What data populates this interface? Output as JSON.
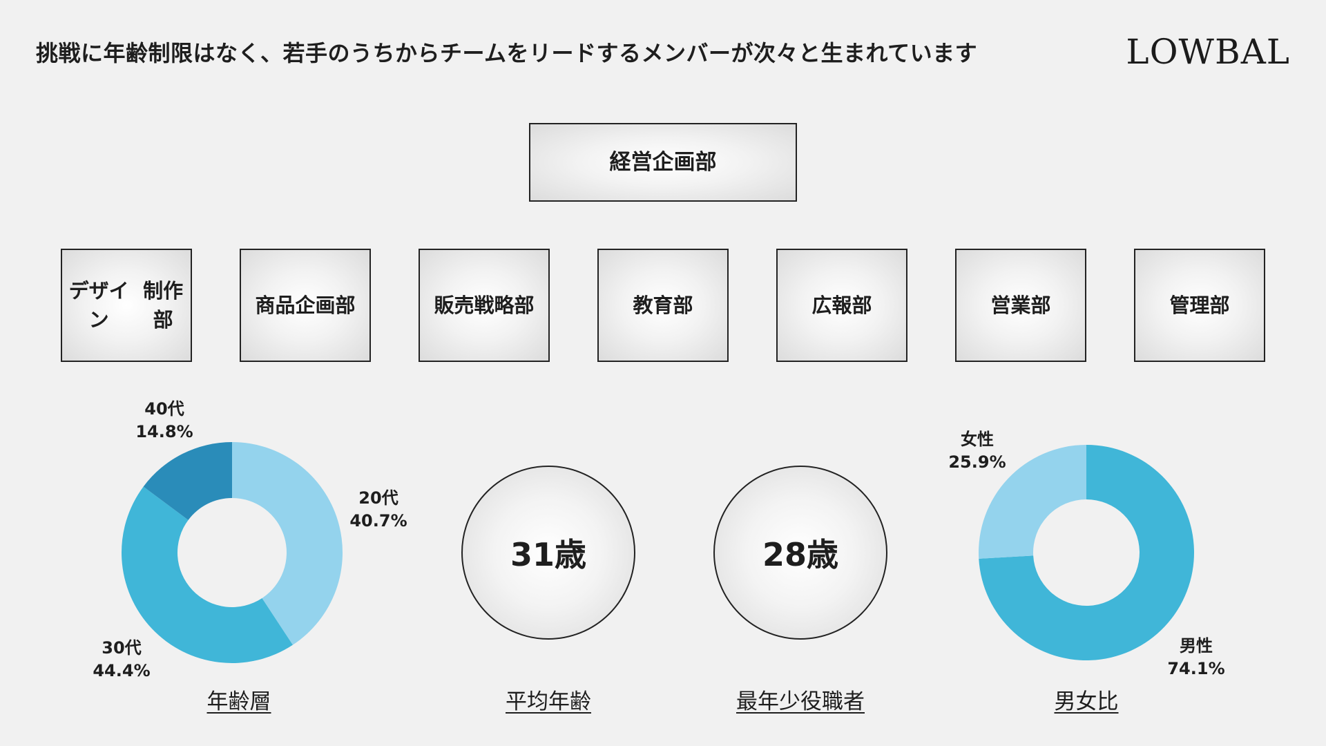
{
  "header": {
    "headline": "挑戦に年齢制限はなく、若手のうちからチームをリードするメンバーが次々と生まれています",
    "logo_text": "LOWBAL"
  },
  "org_chart": {
    "top": {
      "label": "経営企画部"
    },
    "departments": [
      {
        "lines": [
          "デザイン",
          "制作部"
        ]
      },
      {
        "lines": [
          "商品企画部"
        ]
      },
      {
        "lines": [
          "販売戦略部"
        ]
      },
      {
        "lines": [
          "教育部"
        ]
      },
      {
        "lines": [
          "広報部"
        ]
      },
      {
        "lines": [
          "営業部"
        ]
      },
      {
        "lines": [
          "管理部"
        ]
      }
    ]
  },
  "stats": {
    "average_age": {
      "value": "31歳",
      "caption": "平均年齢"
    },
    "youngest_manager": {
      "value": "28歳",
      "caption": "最年少役職者"
    }
  },
  "chart_data": [
    {
      "type": "pie",
      "donut": true,
      "caption": "年齢層",
      "categories": [
        "20代",
        "30代",
        "40代"
      ],
      "values": [
        40.7,
        44.4,
        14.8
      ],
      "value_labels": [
        "40.7%",
        "44.4%",
        "14.8%"
      ],
      "colors": [
        "#94d3ed",
        "#40b6d8",
        "#2a8cb9"
      ]
    },
    {
      "type": "pie",
      "donut": true,
      "caption": "男女比",
      "categories": [
        "男性",
        "女性"
      ],
      "values": [
        74.1,
        25.9
      ],
      "value_labels": [
        "74.1%",
        "25.9%"
      ],
      "colors": [
        "#40b6d8",
        "#94d3ed"
      ]
    }
  ]
}
